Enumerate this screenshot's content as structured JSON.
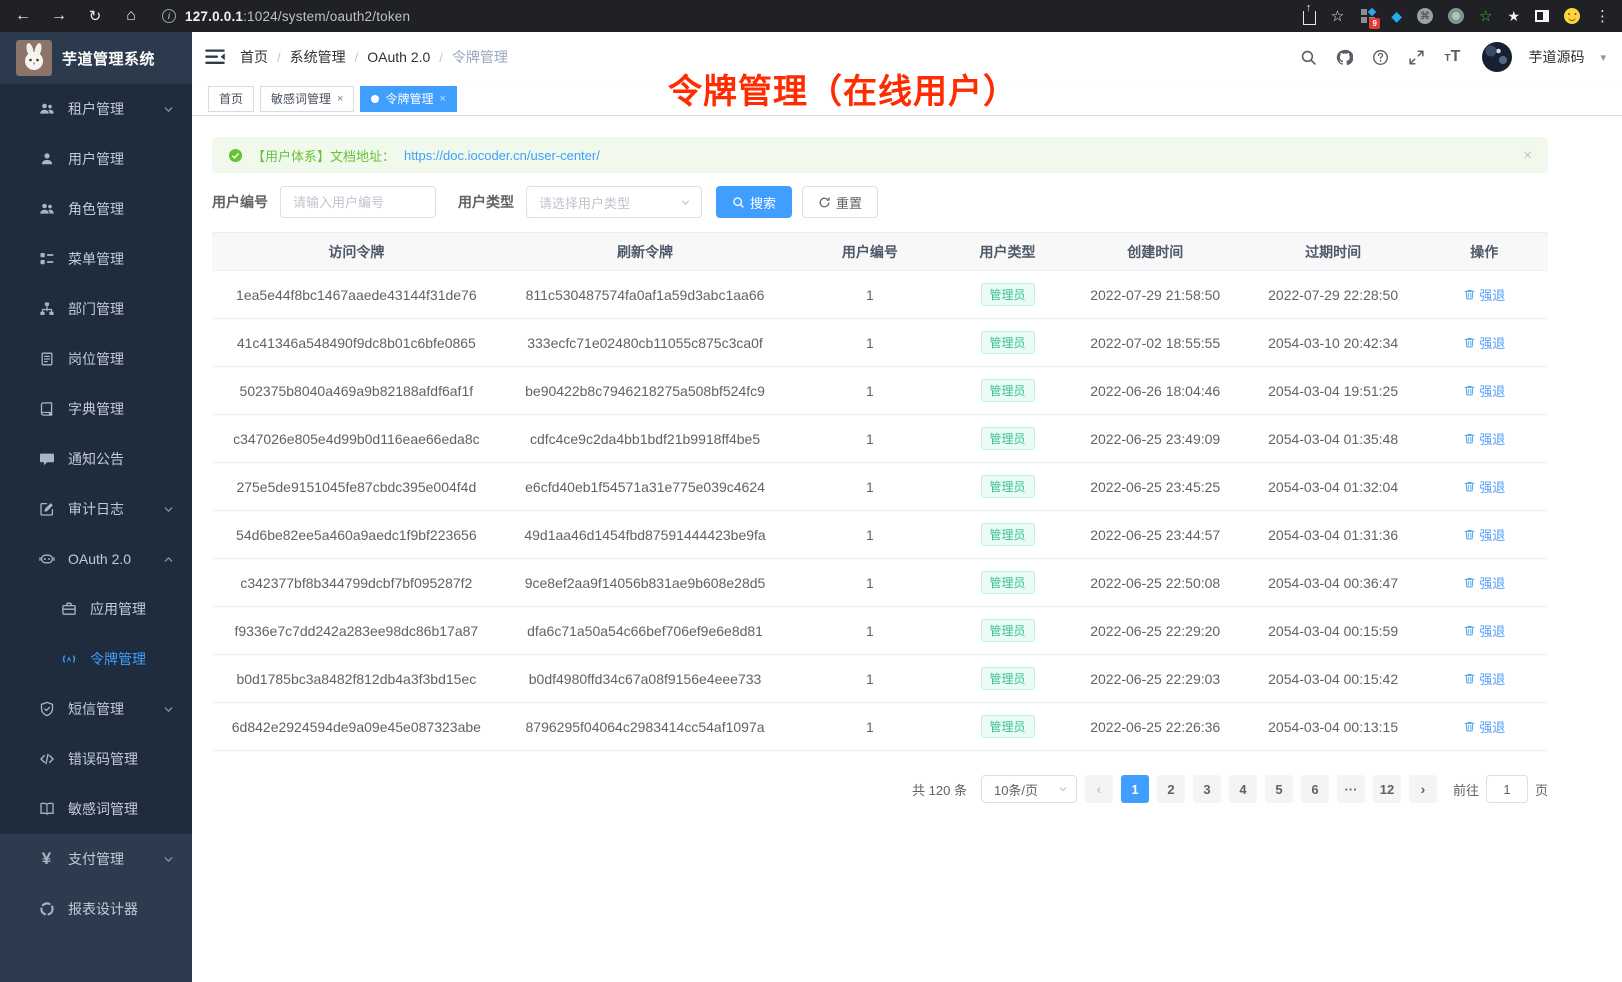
{
  "browser": {
    "nav_icons": [
      "back-icon",
      "forward-icon",
      "reload-icon",
      "home-icon"
    ],
    "info_icon": "info-icon",
    "url_host": "127.0.0.1",
    "url_rest": ":1024/system/oauth2/token",
    "share_icon": "share-icon",
    "star_icon": "star-icon",
    "extension_badge": "9",
    "extension_icons": [
      "extensions-grid-icon",
      "gem-icon",
      "command-circle-icon",
      "record-circle-icon",
      "green-star-icon",
      "white-star-icon",
      "sidebar-toggle-icon",
      "emoji-icon"
    ],
    "menu_icon": "overflow-menu-icon"
  },
  "sidebar": {
    "title": "芋道管理系统",
    "items": [
      {
        "key": "tenant",
        "icon": "users",
        "label": "租户管理",
        "chevron": "down",
        "sub": false,
        "active": false,
        "section": 1
      },
      {
        "key": "user",
        "icon": "user",
        "label": "用户管理",
        "chevron": null,
        "sub": false,
        "active": false,
        "section": 1
      },
      {
        "key": "role",
        "icon": "users",
        "label": "角色管理",
        "chevron": null,
        "sub": false,
        "active": false,
        "section": 1
      },
      {
        "key": "menu",
        "icon": "menu",
        "label": "菜单管理",
        "chevron": null,
        "sub": false,
        "active": false,
        "section": 1
      },
      {
        "key": "dept",
        "icon": "org",
        "label": "部门管理",
        "chevron": null,
        "sub": false,
        "active": false,
        "section": 1
      },
      {
        "key": "post",
        "icon": "badge",
        "label": "岗位管理",
        "chevron": null,
        "sub": false,
        "active": false,
        "section": 1
      },
      {
        "key": "dict",
        "icon": "dict",
        "label": "字典管理",
        "chevron": null,
        "sub": false,
        "active": false,
        "section": 1
      },
      {
        "key": "notice",
        "icon": "message",
        "label": "通知公告",
        "chevron": null,
        "sub": false,
        "active": false,
        "section": 1
      },
      {
        "key": "audit-log",
        "icon": "edit",
        "label": "审计日志",
        "chevron": "down",
        "sub": false,
        "active": false,
        "section": 1
      },
      {
        "key": "oauth2",
        "icon": "robot",
        "label": "OAuth 2.0",
        "chevron": "up",
        "sub": false,
        "active": false,
        "section": 1
      },
      {
        "key": "oauth2-app",
        "icon": "briefcase",
        "label": "应用管理",
        "chevron": null,
        "sub": true,
        "active": false,
        "section": 1
      },
      {
        "key": "oauth2-token",
        "icon": "signal",
        "label": "令牌管理",
        "chevron": null,
        "sub": true,
        "active": true,
        "section": 1
      },
      {
        "key": "sms",
        "icon": "shield",
        "label": "短信管理",
        "chevron": "down",
        "sub": false,
        "active": false,
        "section": 1
      },
      {
        "key": "error-code",
        "icon": "code",
        "label": "错误码管理",
        "chevron": null,
        "sub": false,
        "active": false,
        "section": 1
      },
      {
        "key": "sensitive-word",
        "icon": "book",
        "label": "敏感词管理",
        "chevron": null,
        "sub": false,
        "active": false,
        "section": 1
      },
      {
        "key": "pay",
        "icon": "yen",
        "label": "支付管理",
        "chevron": "down",
        "sub": false,
        "active": false,
        "section": 2
      },
      {
        "key": "report-designer",
        "icon": "report",
        "label": "报表设计器",
        "chevron": null,
        "sub": false,
        "active": false,
        "section": 2
      }
    ]
  },
  "header": {
    "breadcrumb": [
      "首页",
      "系统管理",
      "OAuth 2.0",
      "令牌管理"
    ],
    "action_icons": [
      "search-icon",
      "github-icon",
      "question-icon",
      "fullscreen-icon",
      "font-size-icon"
    ],
    "username": "芋道源码"
  },
  "tabs": [
    {
      "key": "home",
      "label": "首页",
      "active": false,
      "closable": false,
      "dot": false
    },
    {
      "key": "sensitive-word",
      "label": "敏感词管理",
      "active": false,
      "closable": true,
      "dot": false
    },
    {
      "key": "token",
      "label": "令牌管理",
      "active": true,
      "closable": true,
      "dot": true
    }
  ],
  "overlay_title": "令牌管理（在线用户）",
  "alert": {
    "text": "【用户体系】文档地址：",
    "link": "https://doc.iocoder.cn/user-center/"
  },
  "filters": {
    "user_id_label": "用户编号",
    "user_id_placeholder": "请输入用户编号",
    "user_type_label": "用户类型",
    "user_type_placeholder": "请选择用户类型",
    "search_label": "搜索",
    "reset_label": "重置"
  },
  "table": {
    "columns": [
      "访问令牌",
      "刷新令牌",
      "用户编号",
      "用户类型",
      "创建时间",
      "过期时间",
      "操作"
    ],
    "action_label": "强退",
    "rows": [
      {
        "access": "1ea5e44f8bc1467aaede43144f31de76",
        "refresh": "811c530487574fa0af1a59d3abc1aa66",
        "user_id": "1",
        "user_type": "管理员",
        "created": "2022-07-29 21:58:50",
        "expires": "2022-07-29 22:28:50"
      },
      {
        "access": "41c41346a548490f9dc8b01c6bfe0865",
        "refresh": "333ecfc71e02480cb11055c875c3ca0f",
        "user_id": "1",
        "user_type": "管理员",
        "created": "2022-07-02 18:55:55",
        "expires": "2054-03-10 20:42:34"
      },
      {
        "access": "502375b8040a469a9b82188afdf6af1f",
        "refresh": "be90422b8c7946218275a508bf524fc9",
        "user_id": "1",
        "user_type": "管理员",
        "created": "2022-06-26 18:04:46",
        "expires": "2054-03-04 19:51:25"
      },
      {
        "access": "c347026e805e4d99b0d116eae66eda8c",
        "refresh": "cdfc4ce9c2da4bb1bdf21b9918ff4be5",
        "user_id": "1",
        "user_type": "管理员",
        "created": "2022-06-25 23:49:09",
        "expires": "2054-03-04 01:35:48"
      },
      {
        "access": "275e5de9151045fe87cbdc395e004f4d",
        "refresh": "e6cfd40eb1f54571a31e775e039c4624",
        "user_id": "1",
        "user_type": "管理员",
        "created": "2022-06-25 23:45:25",
        "expires": "2054-03-04 01:32:04"
      },
      {
        "access": "54d6be82ee5a460a9aedc1f9bf223656",
        "refresh": "49d1aa46d1454fbd87591444423be9fa",
        "user_id": "1",
        "user_type": "管理员",
        "created": "2022-06-25 23:44:57",
        "expires": "2054-03-04 01:31:36"
      },
      {
        "access": "c342377bf8b344799dcbf7bf095287f2",
        "refresh": "9ce8ef2aa9f14056b831ae9b608e28d5",
        "user_id": "1",
        "user_type": "管理员",
        "created": "2022-06-25 22:50:08",
        "expires": "2054-03-04 00:36:47"
      },
      {
        "access": "f9336e7c7dd242a283ee98dc86b17a87",
        "refresh": "dfa6c71a50a54c66bef706ef9e6e8d81",
        "user_id": "1",
        "user_type": "管理员",
        "created": "2022-06-25 22:29:20",
        "expires": "2054-03-04 00:15:59"
      },
      {
        "access": "b0d1785bc3a8482f812db4a3f3bd15ec",
        "refresh": "b0df4980ffd34c67a08f9156e4eee733",
        "user_id": "1",
        "user_type": "管理员",
        "created": "2022-06-25 22:29:03",
        "expires": "2054-03-04 00:15:42"
      },
      {
        "access": "6d842e2924594de9a09e45e087323abe",
        "refresh": "8796295f04064c2983414cc54af1097a",
        "user_id": "1",
        "user_type": "管理员",
        "created": "2022-06-25 22:26:36",
        "expires": "2054-03-04 00:13:15"
      }
    ]
  },
  "pagination": {
    "total_label": "共 120 条",
    "page_size": "10条/页",
    "pages": [
      "1",
      "2",
      "3",
      "4",
      "5",
      "6",
      "···",
      "12"
    ],
    "active_page": "1",
    "goto_label": "前往",
    "goto_value": "1",
    "page_unit": "页"
  },
  "colors": {
    "accent": "#409eff",
    "overlay_red": "#fe2c00",
    "success_green": "#67c23a"
  }
}
